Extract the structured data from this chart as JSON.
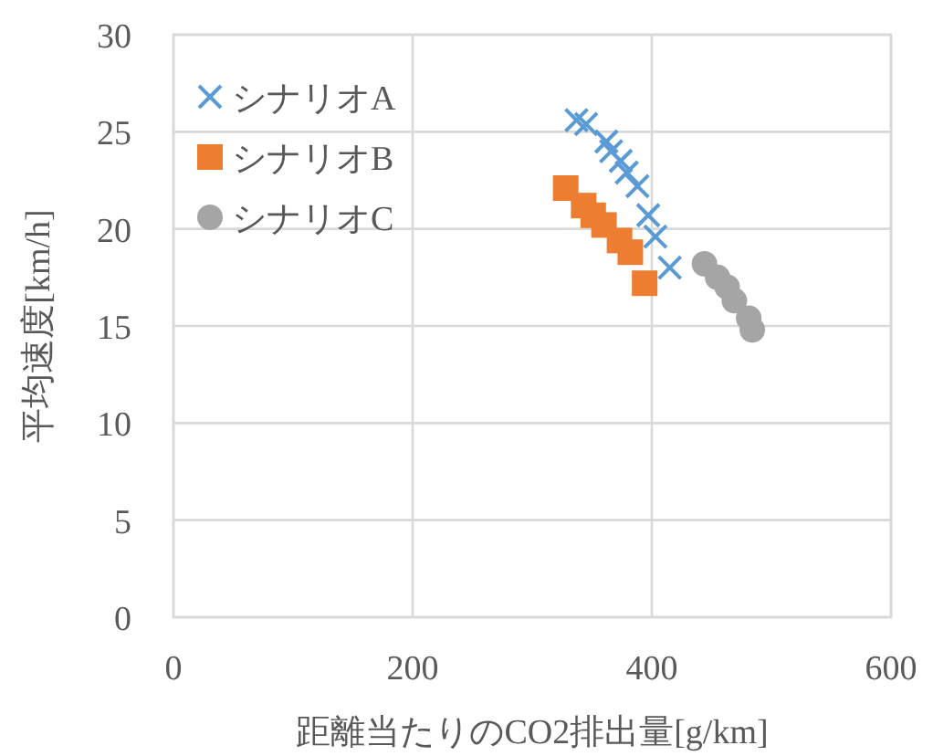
{
  "chart_data": {
    "type": "scatter",
    "xlabel": "距離当たりのCO2排出量[g/km]",
    "ylabel": "平均速度[km/h]",
    "xlim": [
      0,
      600
    ],
    "xticks": [
      0,
      200,
      400,
      600
    ],
    "ylim": [
      0,
      30
    ],
    "yticks": [
      0,
      5,
      10,
      15,
      20,
      25,
      30
    ],
    "grid": true,
    "legend": "top left",
    "series": [
      {
        "name": "シナリオA",
        "color": "#5b9bd5",
        "marker": "cross",
        "x": [
          337,
          345,
          362,
          366,
          374,
          379,
          388,
          397,
          403,
          415
        ],
        "values": [
          25.6,
          25.4,
          24.5,
          24.0,
          23.5,
          22.9,
          22.2,
          20.7,
          19.6,
          18.0
        ]
      },
      {
        "name": "シナリオB",
        "color": "#ed7d31",
        "marker": "square",
        "x": [
          328,
          343,
          351,
          360,
          373,
          382,
          394
        ],
        "values": [
          22.1,
          21.2,
          20.7,
          20.2,
          19.4,
          18.8,
          17.2
        ]
      },
      {
        "name": "シナリオC",
        "color": "#a5a5a5",
        "marker": "circle",
        "x": [
          444,
          455,
          463,
          469,
          481,
          484
        ],
        "values": [
          18.2,
          17.5,
          17.0,
          16.3,
          15.4,
          14.8
        ]
      }
    ]
  }
}
